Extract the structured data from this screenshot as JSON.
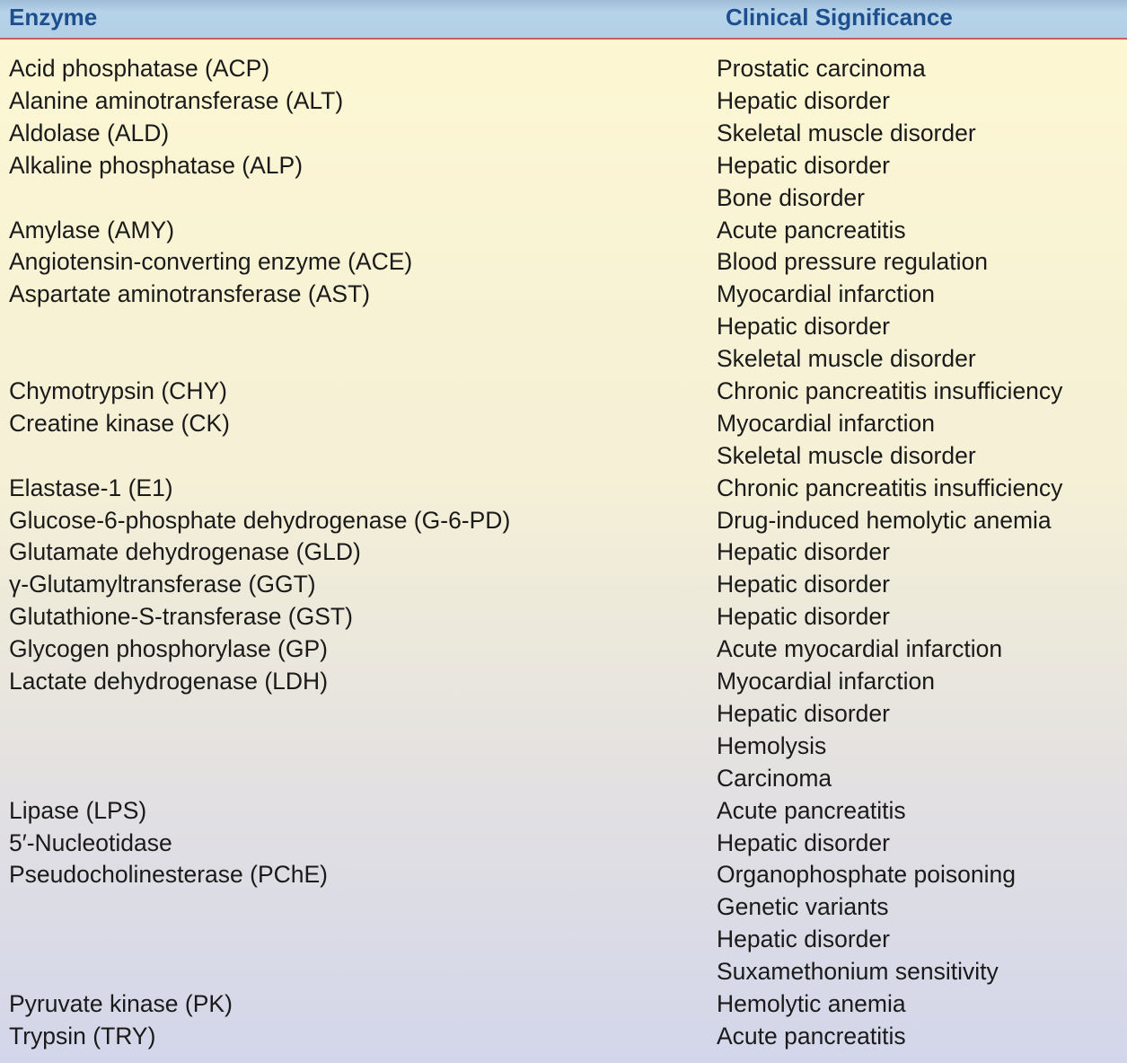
{
  "header": {
    "enzyme": "Enzyme",
    "significance": "Clinical Significance"
  },
  "colors": {
    "header_bg": "#b3d0e6",
    "header_text": "#1d4f8e",
    "rule": "#cc5a5e"
  },
  "rows": [
    {
      "enzyme": "Acid phosphatase (ACP)",
      "significance": [
        "Prostatic carcinoma"
      ]
    },
    {
      "enzyme": "Alanine aminotransferase (ALT)",
      "significance": [
        "Hepatic disorder"
      ]
    },
    {
      "enzyme": "Aldolase (ALD)",
      "significance": [
        "Skeletal muscle disorder"
      ]
    },
    {
      "enzyme": "Alkaline phosphatase (ALP)",
      "significance": [
        "Hepatic disorder",
        "Bone disorder"
      ]
    },
    {
      "enzyme": "Amylase (AMY)",
      "significance": [
        "Acute pancreatitis"
      ]
    },
    {
      "enzyme": "Angiotensin-converting enzyme (ACE)",
      "significance": [
        "Blood pressure regulation"
      ]
    },
    {
      "enzyme": "Aspartate aminotransferase (AST)",
      "significance": [
        "Myocardial infarction",
        "Hepatic disorder",
        "Skeletal muscle disorder"
      ]
    },
    {
      "enzyme": "Chymotrypsin (CHY)",
      "significance": [
        "Chronic pancreatitis insufficiency"
      ]
    },
    {
      "enzyme": "Creatine kinase (CK)",
      "significance": [
        "Myocardial infarction",
        "Skeletal muscle disorder"
      ]
    },
    {
      "enzyme": "Elastase-1 (E1)",
      "significance": [
        "Chronic pancreatitis insufficiency"
      ]
    },
    {
      "enzyme": "Glucose-6-phosphate dehydrogenase (G-6-PD)",
      "significance": [
        "Drug-induced hemolytic anemia"
      ]
    },
    {
      "enzyme": "Glutamate dehydrogenase (GLD)",
      "significance": [
        "Hepatic disorder"
      ]
    },
    {
      "enzyme": "γ-Glutamyltransferase (GGT)",
      "significance": [
        "Hepatic disorder"
      ]
    },
    {
      "enzyme": "Glutathione-S-transferase (GST)",
      "significance": [
        "Hepatic disorder"
      ]
    },
    {
      "enzyme": "Glycogen phosphorylase (GP)",
      "significance": [
        "Acute myocardial infarction"
      ]
    },
    {
      "enzyme": "Lactate dehydrogenase (LDH)",
      "significance": [
        "Myocardial infarction",
        "Hepatic disorder",
        "Hemolysis",
        "Carcinoma"
      ]
    },
    {
      "enzyme": "Lipase (LPS)",
      "significance": [
        "Acute pancreatitis"
      ]
    },
    {
      "enzyme": "5′-Nucleotidase",
      "significance": [
        "Hepatic disorder"
      ]
    },
    {
      "enzyme": "Pseudocholinesterase (PChE)",
      "significance": [
        "Organophosphate poisoning",
        "Genetic variants",
        "Hepatic disorder",
        "Suxamethonium sensitivity"
      ]
    },
    {
      "enzyme": "Pyruvate kinase (PK)",
      "significance": [
        "Hemolytic anemia"
      ]
    },
    {
      "enzyme": "Trypsin (TRY)",
      "significance": [
        "Acute pancreatitis"
      ]
    }
  ]
}
